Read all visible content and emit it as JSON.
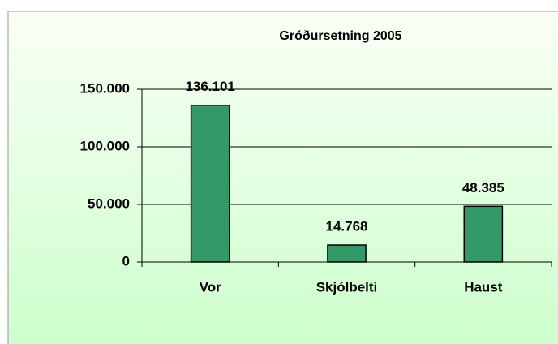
{
  "chart_data": {
    "type": "bar",
    "title": "Gróðursetning 2005",
    "categories": [
      "Vor",
      "Skjólbelti",
      "Haust"
    ],
    "values": [
      136101,
      14768,
      48385
    ],
    "value_labels": [
      "136.101",
      "14.768",
      "48.385"
    ],
    "color": "#339966",
    "ylim": [
      0,
      150000
    ],
    "yticks": [
      0,
      {
        "value": 50000,
        "label": "50.000"
      },
      {
        "value": 100000,
        "label": "100.000"
      },
      {
        "value": 150000,
        "label": "150.000"
      }
    ],
    "grid": true
  }
}
